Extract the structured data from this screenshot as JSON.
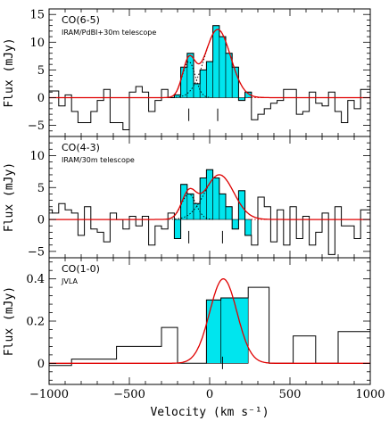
{
  "figure": {
    "xlabel": "Velocity (km s⁻¹)",
    "ylabel": "Flux (mJy)",
    "colors": {
      "fill": "#00e5ee",
      "model": "#e00000",
      "spectrum": "#000000"
    }
  },
  "chart_data": [
    {
      "type": "step-line",
      "line": "CO(6-5)",
      "instrument": "IRAM/PdBI+30m telescope",
      "xlim": [
        -1000,
        1000
      ],
      "ylim": [
        -7,
        16
      ],
      "yticks": [
        -5,
        0,
        5,
        10,
        15
      ],
      "xticks": [
        -1000,
        -500,
        0,
        500,
        1000
      ],
      "bin_width": 40,
      "x": [
        -1000,
        -960,
        -920,
        -880,
        -840,
        -800,
        -760,
        -720,
        -680,
        -640,
        -600,
        -560,
        -520,
        -480,
        -440,
        -400,
        -360,
        -320,
        -280,
        -240,
        -200,
        -160,
        -120,
        -80,
        -40,
        0,
        40,
        80,
        120,
        160,
        200,
        240,
        280,
        320,
        360,
        400,
        440,
        480,
        520,
        560,
        600,
        640,
        680,
        720,
        760,
        800,
        840,
        880,
        920,
        960,
        1000
      ],
      "y": [
        1.2,
        1.2,
        -1.5,
        0.5,
        -2.5,
        -4.5,
        -4.5,
        -2.5,
        -0.5,
        1.5,
        -4.5,
        -4.5,
        -5.8,
        1.0,
        2.0,
        1.0,
        -2.5,
        -0.5,
        1.5,
        0.0,
        0.5,
        5.5,
        8.0,
        2.5,
        5.0,
        6.5,
        13.0,
        11.0,
        8.0,
        5.5,
        -0.5,
        1.0,
        -4.0,
        -3.0,
        -2.0,
        -1.0,
        -0.5,
        1.5,
        1.5,
        -3.0,
        -2.5,
        1.0,
        -1.0,
        -1.5,
        1.0,
        -2.5,
        -4.5,
        -0.5,
        -2.0,
        1.5,
        1.5
      ],
      "shaded": [
        -200,
        240
      ],
      "gaussians": [
        {
          "center": -130,
          "amplitude": 6.5,
          "sigma": 40
        },
        {
          "center": 50,
          "amplitude": 12.3,
          "sigma": 80
        }
      ],
      "markers": [
        -130,
        50
      ]
    },
    {
      "type": "step-line",
      "line": "CO(4-3)",
      "instrument": "IRAM/30m telescope",
      "xlim": [
        -1000,
        1000
      ],
      "ylim": [
        -6,
        13
      ],
      "yticks": [
        -5,
        0,
        5,
        10
      ],
      "xticks": [
        -1000,
        -500,
        0,
        500,
        1000
      ],
      "bin_width": 40,
      "x": [
        -1000,
        -960,
        -920,
        -880,
        -840,
        -800,
        -760,
        -720,
        -680,
        -640,
        -600,
        -560,
        -520,
        -480,
        -440,
        -400,
        -360,
        -320,
        -280,
        -240,
        -200,
        -160,
        -120,
        -80,
        -40,
        0,
        40,
        80,
        120,
        160,
        200,
        240,
        280,
        320,
        360,
        400,
        440,
        480,
        520,
        560,
        600,
        640,
        680,
        720,
        760,
        800,
        840,
        880,
        920,
        960,
        1000
      ],
      "y": [
        1.5,
        1.0,
        2.5,
        1.5,
        1.0,
        -2.5,
        2.0,
        -1.5,
        -2.0,
        -3.5,
        1.0,
        0.0,
        -1.5,
        0.5,
        -1.0,
        0.5,
        -4.0,
        -1.0,
        -1.5,
        1.0,
        -3.0,
        5.5,
        4.0,
        2.5,
        6.5,
        7.8,
        6.5,
        4.0,
        2.0,
        -1.5,
        4.5,
        -2.5,
        -4.0,
        3.5,
        2.0,
        -3.5,
        1.5,
        -4.0,
        2.0,
        -3.0,
        0.5,
        -4.0,
        -2.0,
        1.0,
        -5.5,
        2.0,
        -1.0,
        -1.0,
        -3.0,
        1.5,
        1.5
      ],
      "shaded": [
        -200,
        240
      ],
      "gaussians": [
        {
          "center": -130,
          "amplitude": 4.0,
          "sigma": 45
        },
        {
          "center": 60,
          "amplitude": 7.0,
          "sigma": 90
        }
      ],
      "markers": [
        -130,
        80
      ]
    },
    {
      "type": "step-line",
      "line": "CO(1-0)",
      "instrument": "JVLA",
      "xlim": [
        -1000,
        1000
      ],
      "ylim": [
        -0.1,
        0.5
      ],
      "yticks": [
        0,
        0.2,
        0.4
      ],
      "xticks": [
        -1000,
        -500,
        0,
        500,
        1000
      ],
      "bin_edges": [
        -1000,
        -860,
        -580,
        -300,
        -200,
        -20,
        70,
        240,
        370,
        520,
        660,
        800,
        1000
      ],
      "y": [
        -0.01,
        0.02,
        0.08,
        0.17,
        0.0,
        0.3,
        0.31,
        0.36,
        0.0,
        0.13,
        0.0,
        0.15
      ],
      "shaded": [
        -200,
        240
      ],
      "gaussians": [
        {
          "center": 85,
          "amplitude": 0.4,
          "sigma": 85
        }
      ],
      "markers": [
        80
      ]
    }
  ]
}
